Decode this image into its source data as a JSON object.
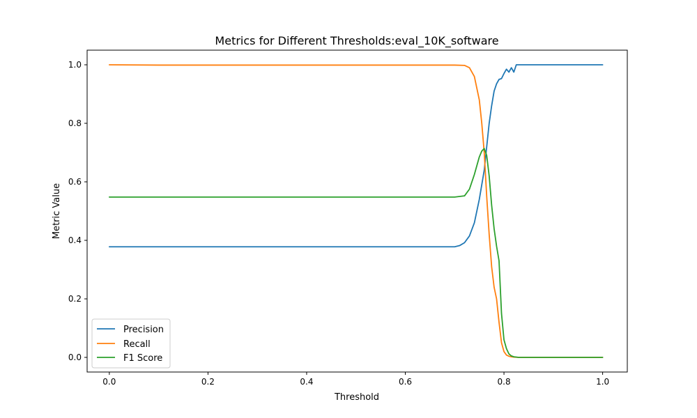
{
  "chart_data": {
    "type": "line",
    "title": "Metrics for Different Thresholds:eval_10K_software",
    "xlabel": "Threshold",
    "ylabel": "Metric Value",
    "xlim": [
      -0.045,
      1.05
    ],
    "ylim": [
      -0.05,
      1.05
    ],
    "xticks": [
      0.0,
      0.2,
      0.4,
      0.6,
      0.8,
      1.0
    ],
    "xtick_labels": [
      "0.0",
      "0.2",
      "0.4",
      "0.6",
      "0.8",
      "1.0"
    ],
    "yticks": [
      0.0,
      0.2,
      0.4,
      0.6,
      0.8,
      1.0
    ],
    "ytick_labels": [
      "0.0",
      "0.2",
      "0.4",
      "0.6",
      "0.8",
      "1.0"
    ],
    "grid": false,
    "legend_position": "lower-left",
    "series": [
      {
        "name": "Precision",
        "color": "#1f77b4",
        "x": [
          0.0,
          0.1,
          0.2,
          0.3,
          0.4,
          0.5,
          0.6,
          0.7,
          0.71,
          0.72,
          0.73,
          0.74,
          0.75,
          0.76,
          0.765,
          0.77,
          0.775,
          0.78,
          0.785,
          0.79,
          0.795,
          0.8,
          0.805,
          0.81,
          0.815,
          0.82,
          0.825,
          0.83,
          0.85,
          0.9,
          1.0
        ],
        "y": [
          0.378,
          0.378,
          0.378,
          0.378,
          0.378,
          0.378,
          0.378,
          0.378,
          0.382,
          0.392,
          0.415,
          0.46,
          0.54,
          0.64,
          0.72,
          0.8,
          0.86,
          0.91,
          0.935,
          0.95,
          0.953,
          0.97,
          0.985,
          0.975,
          0.99,
          0.975,
          1.0,
          1.0,
          1.0,
          1.0,
          1.0
        ]
      },
      {
        "name": "Recall",
        "color": "#ff7f0e",
        "x": [
          0.0,
          0.1,
          0.2,
          0.3,
          0.4,
          0.5,
          0.6,
          0.7,
          0.72,
          0.73,
          0.74,
          0.75,
          0.755,
          0.76,
          0.765,
          0.77,
          0.775,
          0.78,
          0.785,
          0.79,
          0.795,
          0.8,
          0.805,
          0.81,
          0.815,
          0.82,
          0.83,
          0.85,
          0.9,
          1.0
        ],
        "y": [
          1.0,
          0.999,
          0.999,
          0.999,
          0.999,
          0.999,
          0.999,
          0.999,
          0.998,
          0.99,
          0.96,
          0.88,
          0.8,
          0.7,
          0.55,
          0.42,
          0.31,
          0.24,
          0.2,
          0.12,
          0.05,
          0.02,
          0.008,
          0.004,
          0.002,
          0.001,
          0.0,
          0.0,
          0.0,
          0.0
        ]
      },
      {
        "name": "F1 Score",
        "color": "#2ca02c",
        "x": [
          0.0,
          0.1,
          0.2,
          0.3,
          0.4,
          0.5,
          0.6,
          0.7,
          0.72,
          0.73,
          0.74,
          0.75,
          0.755,
          0.76,
          0.765,
          0.77,
          0.775,
          0.78,
          0.785,
          0.79,
          0.795,
          0.8,
          0.805,
          0.81,
          0.815,
          0.82,
          0.83,
          0.85,
          0.9,
          1.0
        ],
        "y": [
          0.548,
          0.548,
          0.548,
          0.548,
          0.548,
          0.548,
          0.548,
          0.548,
          0.552,
          0.575,
          0.625,
          0.685,
          0.705,
          0.714,
          0.69,
          0.62,
          0.52,
          0.44,
          0.38,
          0.33,
          0.15,
          0.06,
          0.03,
          0.012,
          0.005,
          0.002,
          0.0,
          0.0,
          0.0,
          0.0
        ]
      }
    ]
  }
}
